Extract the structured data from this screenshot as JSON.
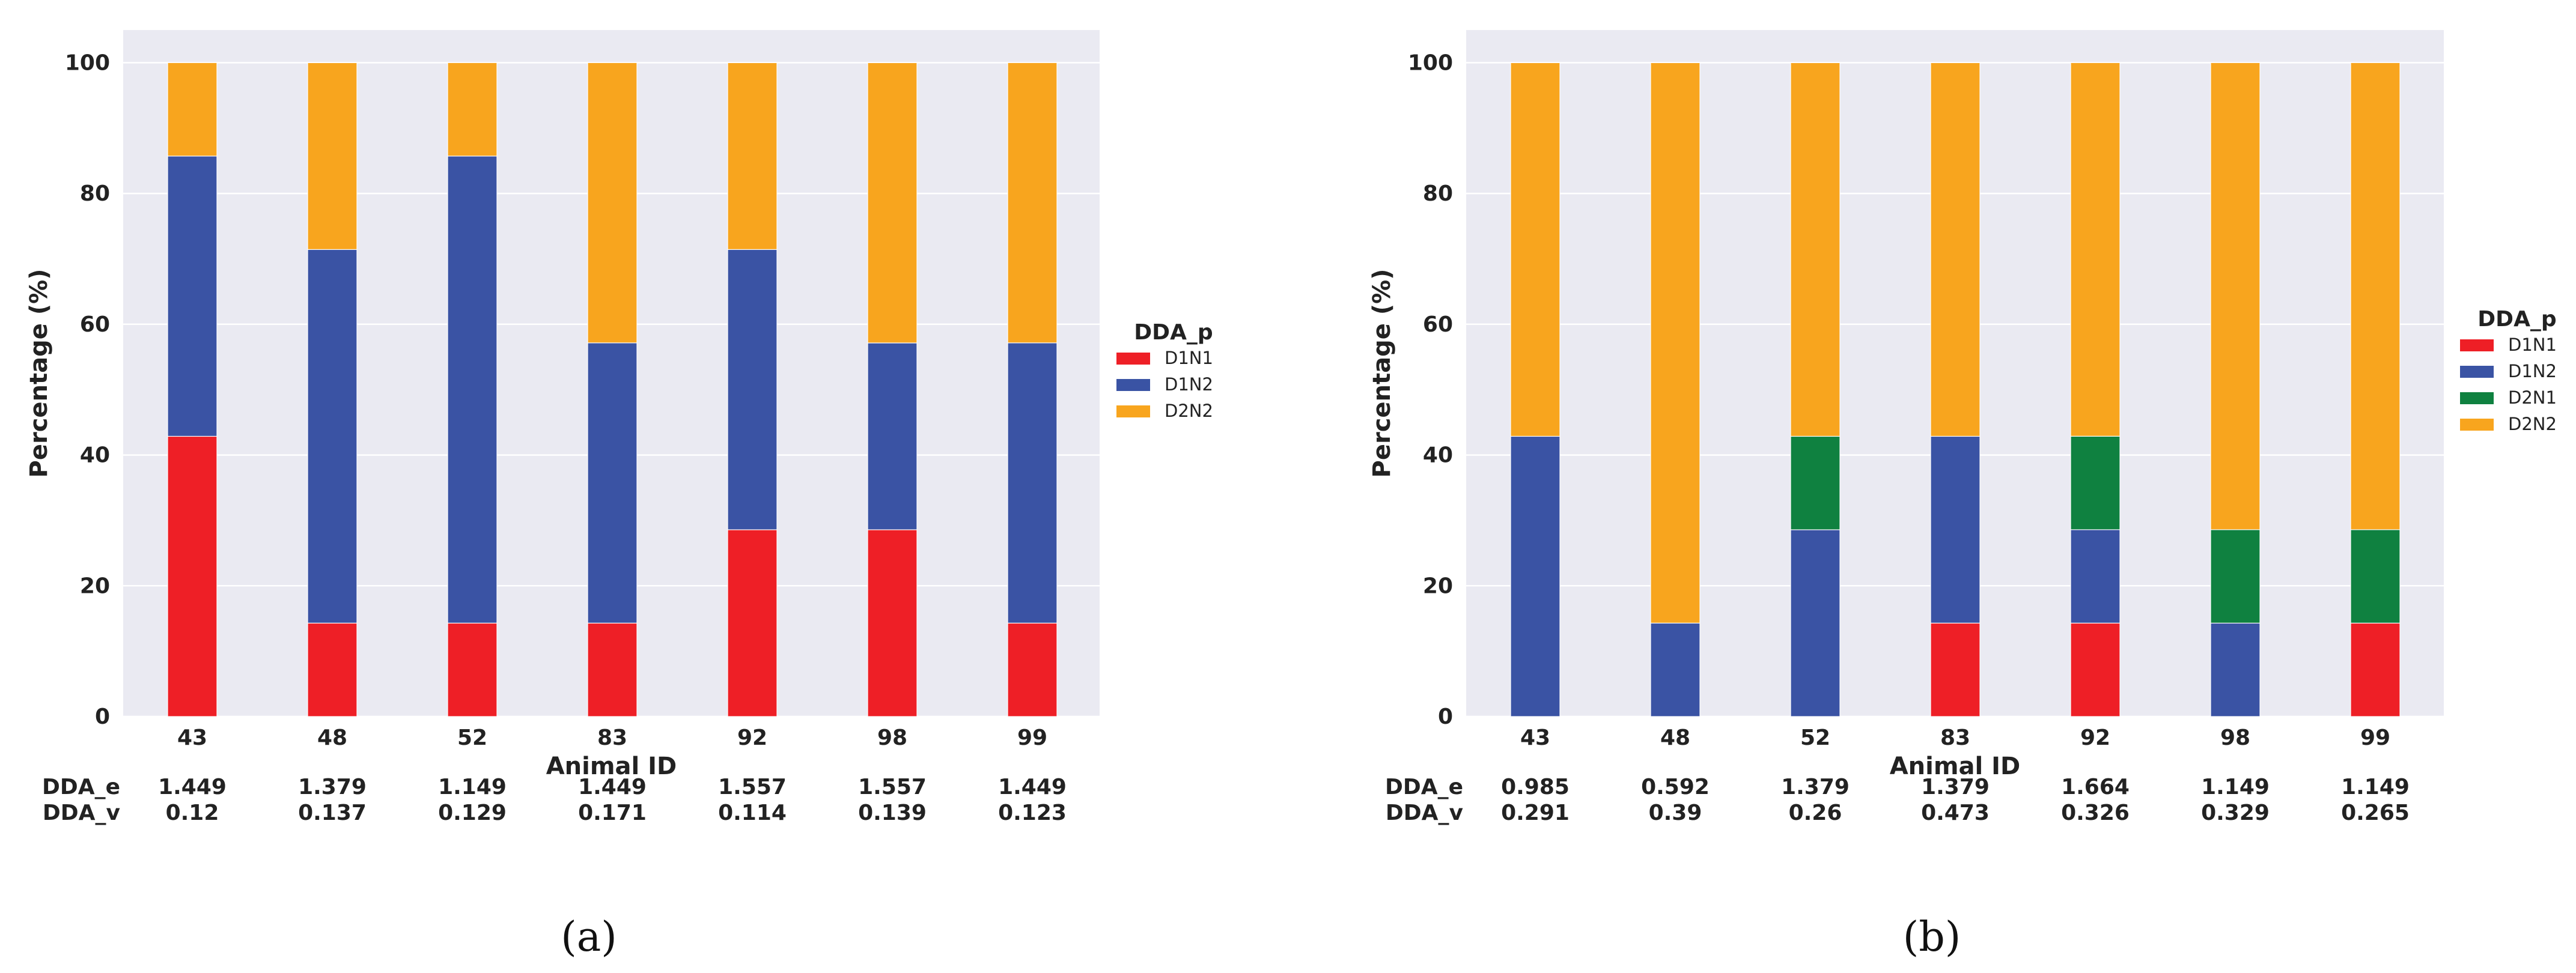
{
  "colors": {
    "D1N1": "#ee1f26",
    "D1N2": "#3a53a4",
    "D2N1": "#0f8140",
    "D2N2": "#f8a51e",
    "plot_bg": "#eaeaf2",
    "grid": "#ffffff"
  },
  "chart_data": [
    {
      "type": "bar",
      "stacked": true,
      "caption": "(a)",
      "xlabel": "Animal ID",
      "ylabel": "Percentage (%)",
      "ylim": [
        0,
        105
      ],
      "yticks": [
        0,
        20,
        40,
        60,
        80,
        100
      ],
      "grid": true,
      "legend_title": "DDA_p",
      "legend_position": "right",
      "categories": [
        "43",
        "48",
        "52",
        "83",
        "92",
        "98",
        "99"
      ],
      "series": [
        {
          "name": "D1N1",
          "values": [
            42.86,
            14.29,
            14.29,
            14.29,
            28.57,
            28.57,
            14.29
          ]
        },
        {
          "name": "D1N2",
          "values": [
            42.86,
            57.14,
            71.43,
            42.86,
            42.86,
            28.57,
            42.86
          ]
        },
        {
          "name": "D2N2",
          "values": [
            14.29,
            28.57,
            14.29,
            42.86,
            28.57,
            42.86,
            42.86
          ]
        }
      ],
      "extra_rows": [
        {
          "label": "DDA_e",
          "values": [
            "1.449",
            "1.379",
            "1.149",
            "1.449",
            "1.557",
            "1.557",
            "1.449"
          ]
        },
        {
          "label": "DDA_v",
          "values": [
            "0.12",
            "0.137",
            "0.129",
            "0.171",
            "0.114",
            "0.139",
            "0.123"
          ]
        }
      ]
    },
    {
      "type": "bar",
      "stacked": true,
      "caption": "(b)",
      "xlabel": "Animal ID",
      "ylabel": "Percentage (%)",
      "ylim": [
        0,
        105
      ],
      "yticks": [
        0,
        20,
        40,
        60,
        80,
        100
      ],
      "grid": true,
      "legend_title": "DDA_p",
      "legend_position": "right",
      "categories": [
        "43",
        "48",
        "52",
        "83",
        "92",
        "98",
        "99"
      ],
      "series": [
        {
          "name": "D1N1",
          "values": [
            0,
            0,
            0,
            14.29,
            14.29,
            0,
            14.29
          ]
        },
        {
          "name": "D1N2",
          "values": [
            42.86,
            14.29,
            28.57,
            28.57,
            14.29,
            14.29,
            0
          ]
        },
        {
          "name": "D2N1",
          "values": [
            0,
            0,
            14.29,
            0,
            14.29,
            14.29,
            14.29
          ]
        },
        {
          "name": "D2N2",
          "values": [
            57.14,
            85.71,
            57.14,
            57.14,
            57.14,
            71.43,
            71.43
          ]
        }
      ],
      "extra_rows": [
        {
          "label": "DDA_e",
          "values": [
            "0.985",
            "0.592",
            "1.379",
            "1.379",
            "1.664",
            "1.149",
            "1.149"
          ]
        },
        {
          "label": "DDA_v",
          "values": [
            "0.291",
            "0.39",
            "0.26",
            "0.473",
            "0.326",
            "0.329",
            "0.265"
          ]
        }
      ]
    }
  ]
}
